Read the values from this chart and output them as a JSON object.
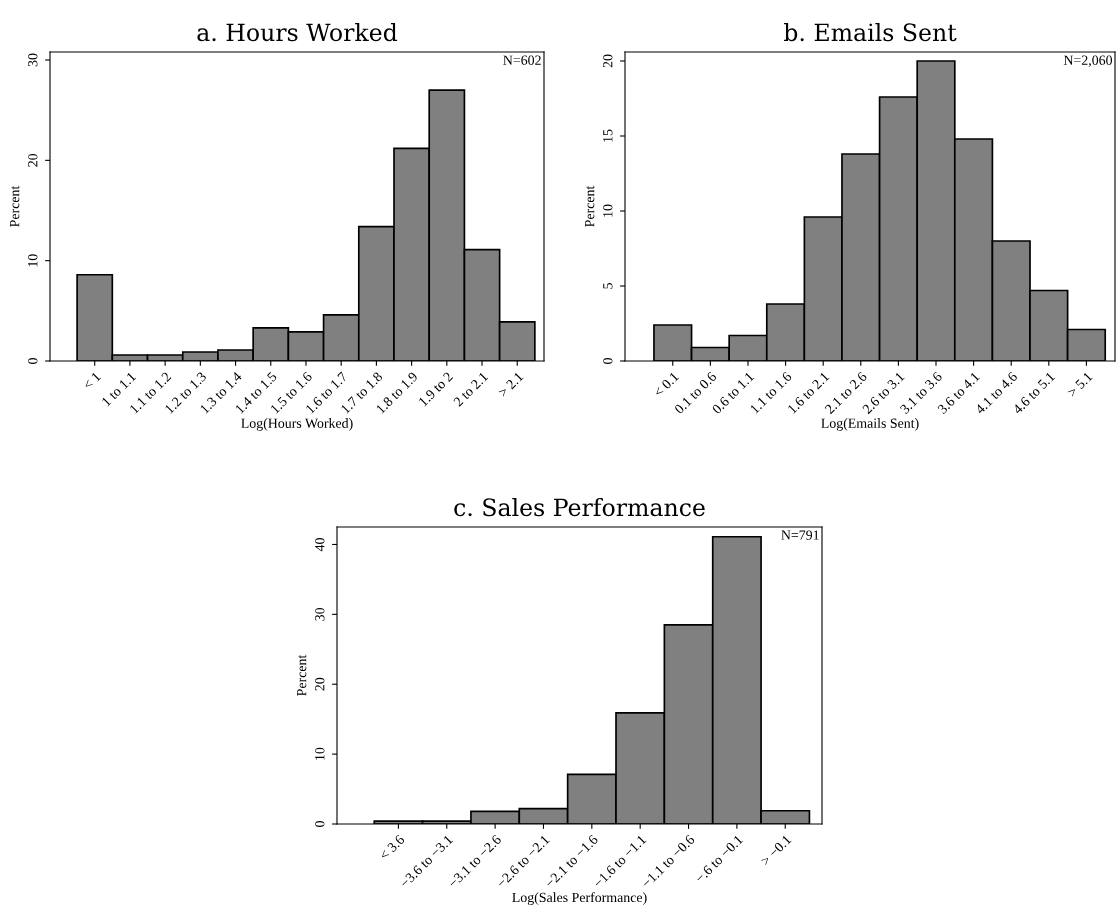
{
  "chart_data": [
    {
      "type": "bar",
      "title": "a. Hours Worked",
      "xlabel": "Log(Hours Worked)",
      "ylabel": "Percent",
      "annotations": [
        "N=602"
      ],
      "categories": [
        "< 1",
        "1 to 1.1",
        "1.1 to 1.2",
        "1.2 to 1.3",
        "1.3 to 1.4",
        "1.4 to 1.5",
        "1.5 to 1.6",
        "1.6 to 1.7",
        "1.7 to 1.8",
        "1.8 to 1.9",
        "1.9 to 2",
        "2 to 2.1",
        "> 2.1"
      ],
      "values": [
        8.6,
        0.6,
        0.6,
        0.9,
        1.1,
        3.3,
        2.9,
        4.6,
        13.4,
        21.2,
        27.0,
        11.1,
        3.9
      ],
      "color": "#808080",
      "ylim": [
        0,
        30.8
      ],
      "yticks": [
        0,
        10,
        20,
        30
      ],
      "grid": false
    },
    {
      "type": "bar",
      "title": "b. Emails Sent",
      "xlabel": "Log(Emails Sent)",
      "ylabel": "Percent",
      "annotations": [
        "N=2,060"
      ],
      "categories": [
        "< 0.1",
        "0.1 to 0.6",
        "0.6 to 1.1",
        "1.1 to 1.6",
        "1.6 to 2.1",
        "2.1 to 2.6",
        "2.6 to 3.1",
        "3.1 to 3.6",
        "3.6 to 4.1",
        "4.1 to 4.6",
        "4.6 to 5.1",
        "> 5.1"
      ],
      "values": [
        2.4,
        0.9,
        1.7,
        3.8,
        9.6,
        13.8,
        17.6,
        20.0,
        14.8,
        8.0,
        4.7,
        2.1
      ],
      "color": "#808080",
      "ylim": [
        0,
        20.6
      ],
      "yticks": [
        0,
        5,
        10,
        15,
        20
      ],
      "grid": false
    },
    {
      "type": "bar",
      "title": "c. Sales Performance",
      "xlabel": "Log(Sales Performance)",
      "ylabel": "Percent",
      "annotations": [
        "N=791"
      ],
      "categories": [
        "< 3.6",
        "−3.6 to −3.1",
        "−3.1 to −2.6",
        "−2.6 to −2.1",
        "−2.1 to −1.6",
        "−1.6 to −1.1",
        "−1.1 to −0.6",
        "−.6 to −0.1",
        "> −0.1"
      ],
      "values": [
        0.4,
        0.4,
        1.8,
        2.2,
        7.1,
        15.9,
        28.5,
        41.1,
        1.9
      ],
      "color": "#808080",
      "ylim": [
        0,
        42.5
      ],
      "yticks": [
        0,
        10,
        20,
        30,
        40
      ],
      "grid": false
    }
  ]
}
